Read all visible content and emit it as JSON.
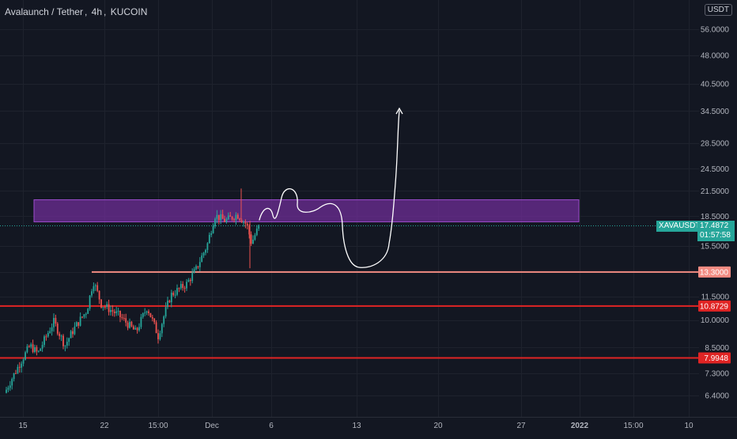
{
  "header": {
    "symbol_name": "Avalaunch / Tether",
    "interval": "4h",
    "exchange": "KUCOIN"
  },
  "currency": "USDT",
  "colors": {
    "background": "#131722",
    "up": "#26a69a",
    "down": "#ef5350",
    "zone": "#7b2fa8",
    "resistance_line": "#f28b82",
    "support_line": "#e02424",
    "drawing": "#ffffff"
  },
  "price_axis": {
    "ticks": [
      "56.0000",
      "48.0000",
      "40.5000",
      "34.5000",
      "28.5000",
      "24.5000",
      "21.5000",
      "18.5000",
      "15.5000",
      "13.3000",
      "11.5000",
      "10.0000",
      "8.5000",
      "7.3000",
      "6.4000"
    ],
    "tick_values": [
      56,
      48,
      40.5,
      34.5,
      28.5,
      24.5,
      21.5,
      18.5,
      15.5,
      13.3,
      11.5,
      10,
      8.5,
      7.3,
      6.4
    ],
    "scale": "log"
  },
  "time_axis": {
    "labels": [
      "15",
      "22",
      "15:00",
      "Dec",
      "6",
      "13",
      "20",
      "27",
      "2022",
      "15:00",
      "10"
    ],
    "bold": [
      "2022"
    ]
  },
  "current_price": {
    "symbol": "XAVAUSDT",
    "value": "17.4872",
    "countdown": "01:57:58",
    "color": "#26a69a"
  },
  "levels": [
    {
      "label": "13.3000",
      "value": 13.3,
      "color": "#f28b82"
    },
    {
      "label": "10.8729",
      "value": 10.8729,
      "color": "#e02424"
    },
    {
      "label": "7.9948",
      "value": 7.9948,
      "color": "#e02424"
    }
  ],
  "zone": {
    "low": 17.9,
    "high": 20.4
  }
}
